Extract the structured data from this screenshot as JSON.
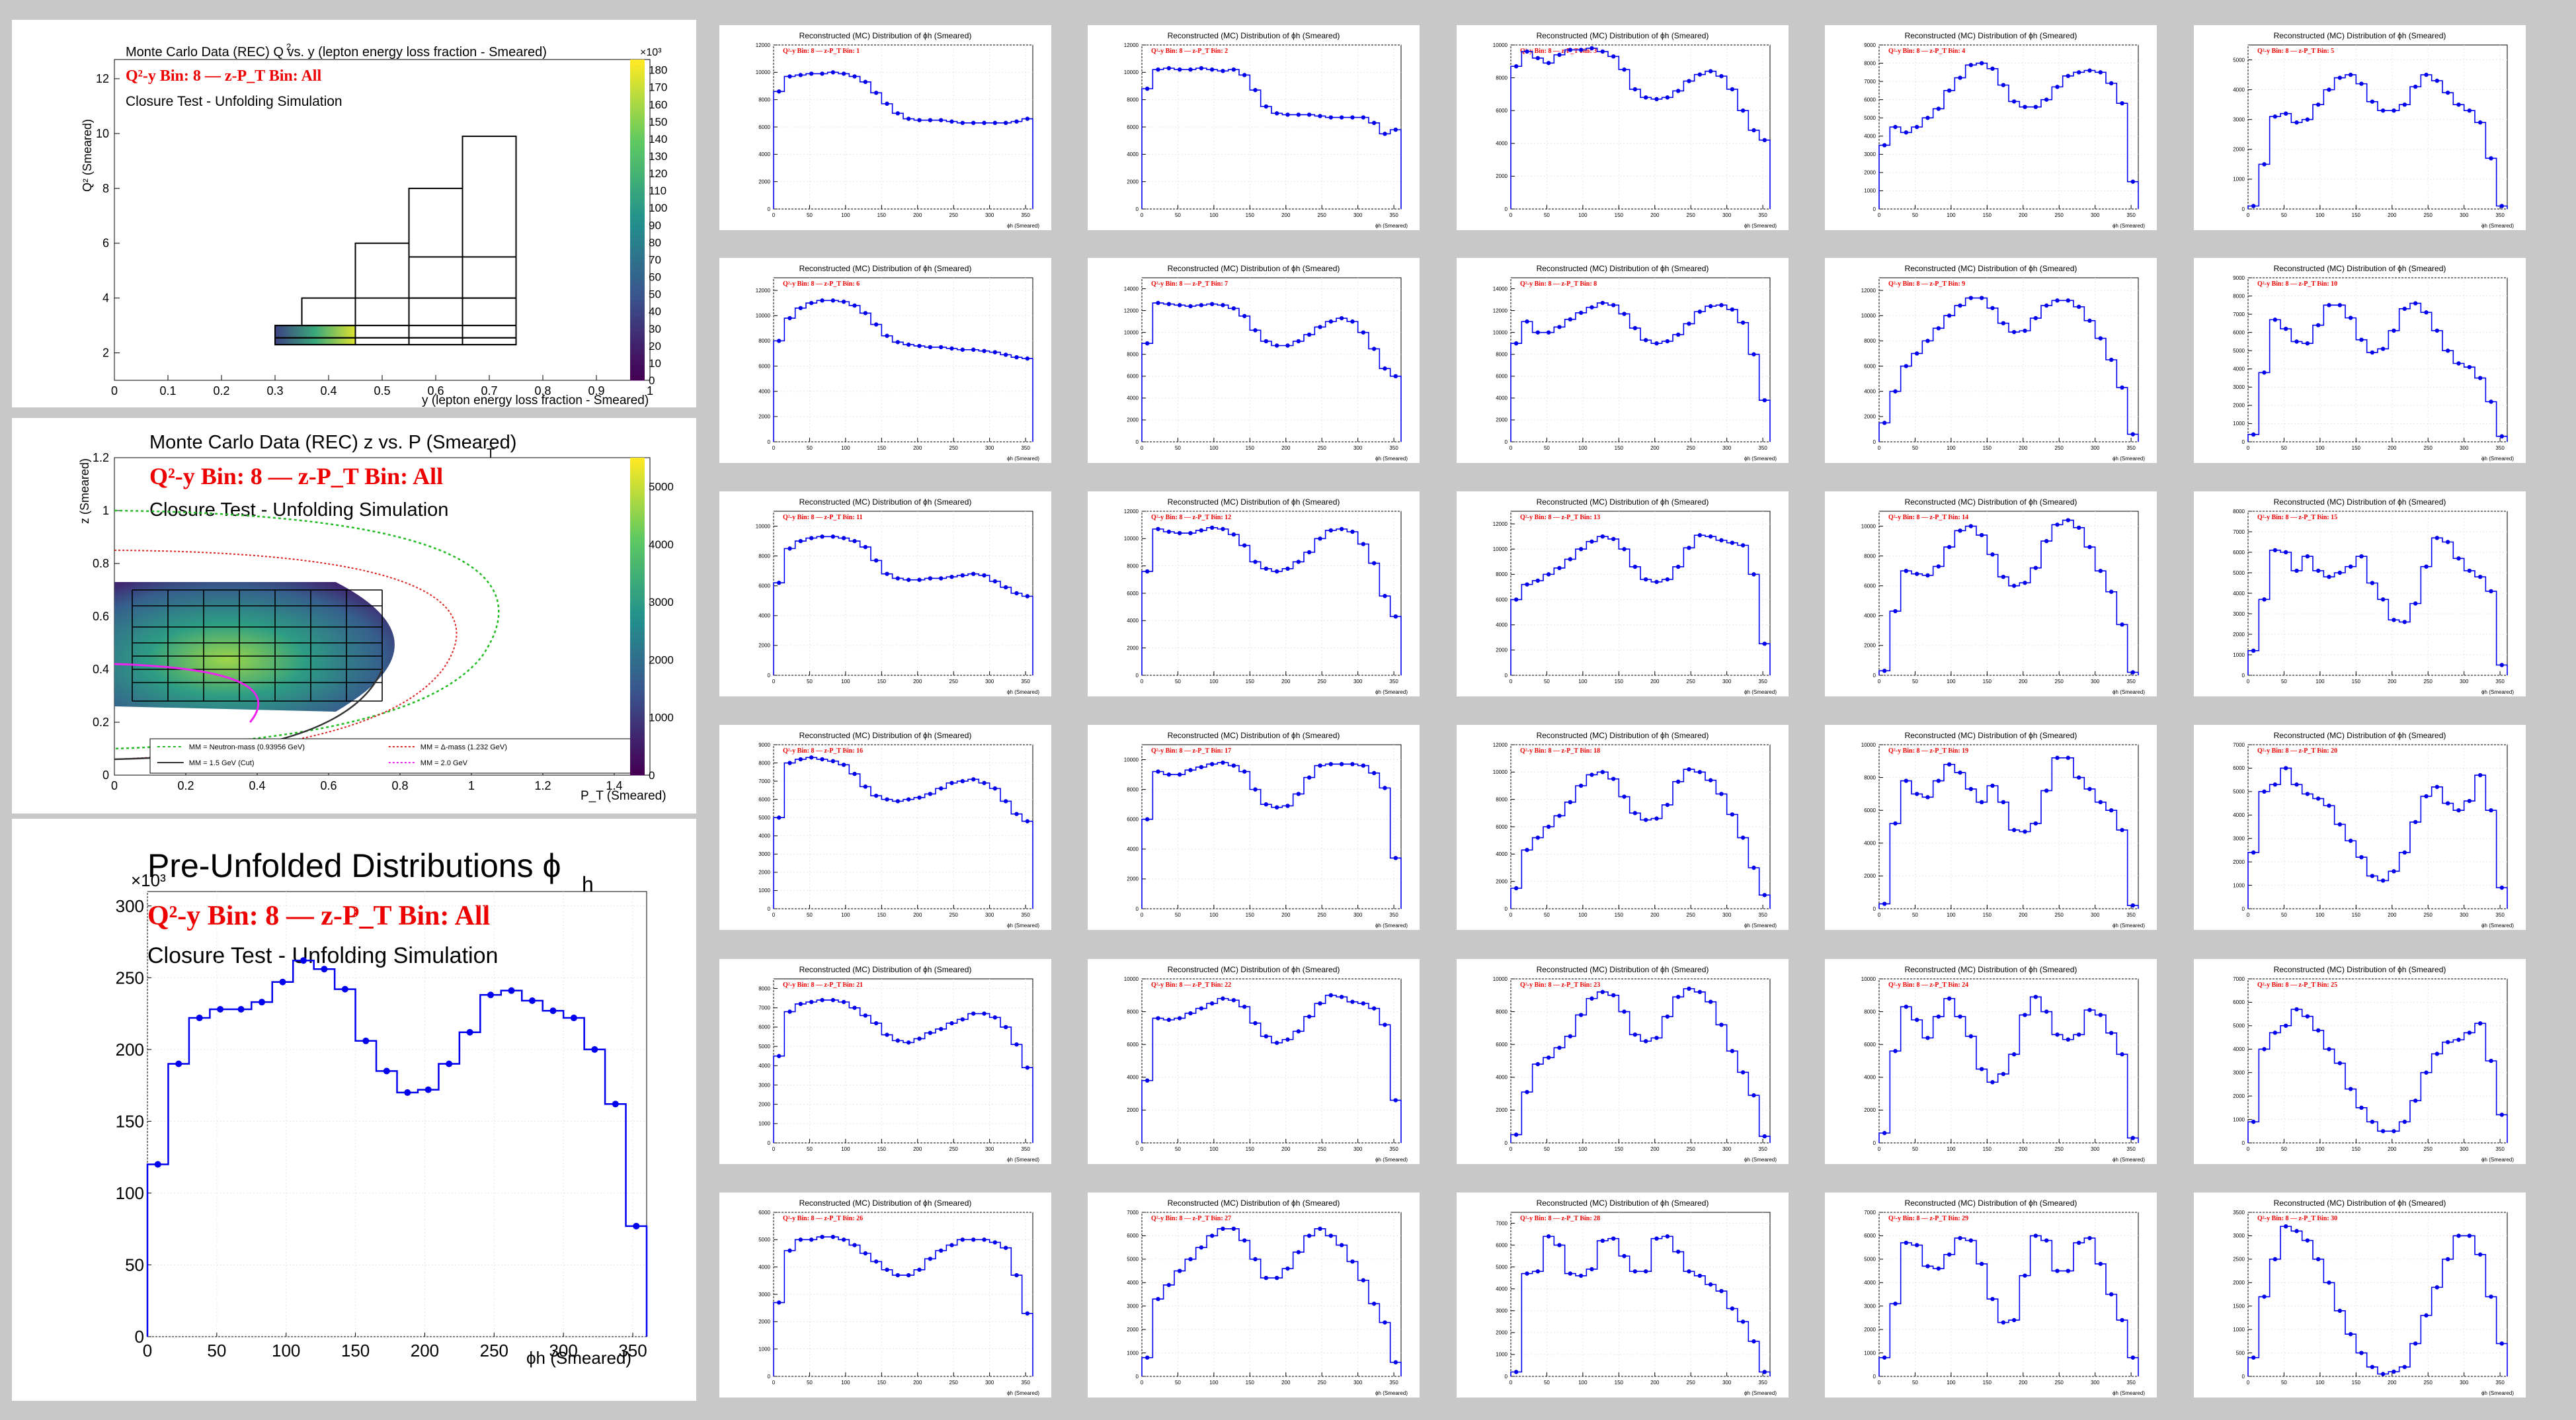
{
  "left_top": {
    "title": "Monte Carlo Data (REC) Q  vs. y (lepton energy loss fraction - Smeared)",
    "title_sup": "2",
    "bin_label": "Q²-y Bin: 8  —  z-P_T Bin: All",
    "subtitle": "Closure Test - Unfolding Simulation",
    "xlabel": "y (lepton energy loss fraction - Smeared)",
    "ylabel": "Q² (Smeared)",
    "colorbar_scale": "×10³",
    "colorbar_ticks": [
      "0",
      "10",
      "20",
      "30",
      "40",
      "50",
      "60",
      "70",
      "80",
      "90",
      "100",
      "110",
      "120",
      "130",
      "140",
      "150",
      "160",
      "170",
      "180"
    ],
    "x_ticks": [
      "0",
      "0.1",
      "0.2",
      "0.3",
      "0.4",
      "0.5",
      "0.6",
      "0.7",
      "0.8",
      "0.9",
      "1"
    ],
    "y_ticks": [
      "2",
      "4",
      "6",
      "8",
      "10",
      "12"
    ]
  },
  "left_mid": {
    "title": "Monte Carlo Data (REC) z vs. P  (Smeared)",
    "title_sub": "T",
    "bin_label": "Q²-y Bin: 8  —  z-P_T Bin: All",
    "subtitle": "Closure Test - Unfolding Simulation",
    "xlabel": "P_T (Smeared)",
    "ylabel": "z (Smeared)",
    "colorbar_ticks": [
      "0",
      "1000",
      "2000",
      "3000",
      "4000",
      "5000"
    ],
    "x_ticks": [
      "0",
      "0.2",
      "0.4",
      "0.6",
      "0.8",
      "1",
      "1.2",
      "1.4"
    ],
    "y_ticks": [
      "0",
      "0.2",
      "0.4",
      "0.6",
      "0.8",
      "1",
      "1.2"
    ],
    "legend": [
      "MM = Neutron-mass (0.93956 GeV)",
      "MM = Δ-mass (1.232 GeV)",
      "MM = 1.5 GeV (Cut)",
      "MM = 2.0 GeV"
    ]
  },
  "left_bottom": {
    "title": "Pre-Unfolded Distributions ϕ",
    "title_sub": "h",
    "bin_label": "Q²-y Bin: 8  —  z-P_T Bin: All",
    "subtitle": "Closure Test - Unfolding Simulation",
    "xlabel": "ϕh (Smeared)",
    "y_scale": "×10³",
    "x_ticks": [
      "0",
      "50",
      "100",
      "150",
      "200",
      "250",
      "300",
      "350"
    ],
    "y_ticks": [
      "0",
      "50",
      "100",
      "150",
      "200",
      "250",
      "300"
    ]
  },
  "small_panels": {
    "title": "Reconstructed (MC) Distribution of ϕh (Smeared)",
    "bin_prefix": "Q²-y Bin: 8  —  z-P_T Bin:",
    "xlabel": "ϕh (Smeared)",
    "x_ticks": [
      "0",
      "50",
      "100",
      "150",
      "200",
      "250",
      "300",
      "350"
    ]
  },
  "colors": {
    "hist": "#0000ee",
    "bin_label": "#ee0000",
    "background": "#c8c8c8"
  },
  "chart_data": [
    {
      "type": "bar",
      "name": "Pre-Unfolded Distributions ϕh",
      "x_unit": "degrees",
      "xlim": [
        0,
        360
      ],
      "ylim": [
        0,
        310
      ],
      "bin_width": 15,
      "values": [
        120,
        190,
        222,
        228,
        228,
        233,
        247,
        262,
        256,
        242,
        206,
        185,
        170,
        172,
        190,
        212,
        238,
        241,
        234,
        227,
        222,
        200,
        162,
        77
      ]
    },
    {
      "type": "bar",
      "small_multiples": true,
      "xlim": [
        0,
        360
      ],
      "bin_width": 15,
      "panels": [
        {
          "bin": "1",
          "ymax": 12000,
          "values": [
            8600,
            9700,
            9800,
            9900,
            9900,
            10000,
            9900,
            9700,
            9300,
            8500,
            7700,
            7000,
            6600,
            6500,
            6500,
            6500,
            6400,
            6300,
            6300,
            6300,
            6300,
            6300,
            6400,
            6600
          ]
        },
        {
          "bin": "2",
          "ymax": 12000,
          "values": [
            8800,
            10200,
            10300,
            10200,
            10200,
            10300,
            10200,
            10100,
            10200,
            9800,
            8700,
            7500,
            7000,
            6900,
            6900,
            6900,
            6800,
            6700,
            6700,
            6700,
            6700,
            6300,
            5500,
            5800
          ]
        },
        {
          "bin": "3",
          "ymax": 10000,
          "values": [
            8700,
            9600,
            9200,
            8900,
            9400,
            9700,
            9700,
            9800,
            9600,
            9300,
            8500,
            7300,
            6800,
            6700,
            6800,
            7200,
            7800,
            8200,
            8400,
            8100,
            7300,
            6000,
            4800,
            4200
          ]
        },
        {
          "bin": "4",
          "ymax": 9000,
          "values": [
            3500,
            4500,
            4200,
            4500,
            5000,
            5500,
            6500,
            7200,
            7900,
            8000,
            7700,
            6800,
            5900,
            5600,
            5600,
            6000,
            6700,
            7300,
            7500,
            7600,
            7500,
            6900,
            5800,
            1500
          ]
        },
        {
          "bin": "5",
          "ymax": 5500,
          "values": [
            100,
            1500,
            3100,
            3200,
            2900,
            3000,
            3500,
            4000,
            4400,
            4500,
            4200,
            3600,
            3300,
            3300,
            3500,
            4100,
            4500,
            4300,
            3900,
            3500,
            3300,
            2900,
            1700,
            100
          ]
        },
        {
          "bin": "6",
          "ymax": 13000,
          "values": [
            8000,
            9800,
            10600,
            11000,
            11200,
            11200,
            11100,
            10800,
            10200,
            9300,
            8400,
            7900,
            7700,
            7600,
            7500,
            7500,
            7400,
            7300,
            7300,
            7200,
            7100,
            6900,
            6700,
            6600
          ]
        },
        {
          "bin": "7",
          "ymax": 15000,
          "values": [
            9000,
            12700,
            12600,
            12500,
            12400,
            12500,
            12600,
            12500,
            12200,
            11500,
            10200,
            9200,
            8800,
            8800,
            9200,
            9800,
            10500,
            11000,
            11300,
            11000,
            10000,
            8500,
            6700,
            6000
          ]
        },
        {
          "bin": "8",
          "ymax": 15000,
          "values": [
            9000,
            11000,
            10000,
            10000,
            10500,
            11200,
            11800,
            12300,
            12700,
            12500,
            11700,
            10400,
            9300,
            9000,
            9200,
            9800,
            10800,
            11900,
            12400,
            12500,
            12100,
            10900,
            8000,
            3800
          ]
        },
        {
          "bin": "9",
          "ymax": 13000,
          "values": [
            1500,
            4000,
            6000,
            7000,
            8000,
            9000,
            10000,
            10800,
            11400,
            11400,
            10600,
            9400,
            8700,
            8800,
            9800,
            10800,
            11200,
            11200,
            10700,
            9600,
            8200,
            6500,
            4300,
            600
          ]
        },
        {
          "bin": "10",
          "ymax": 9000,
          "values": [
            400,
            3800,
            6700,
            6200,
            5500,
            5400,
            6400,
            7500,
            7500,
            6800,
            5600,
            4900,
            5100,
            6100,
            7300,
            7600,
            7100,
            6100,
            5000,
            4300,
            4100,
            3500,
            2200,
            300
          ]
        },
        {
          "bin": "11",
          "ymax": 11000,
          "values": [
            6200,
            8500,
            9000,
            9200,
            9300,
            9300,
            9200,
            9000,
            8600,
            7700,
            6800,
            6500,
            6400,
            6400,
            6500,
            6500,
            6600,
            6700,
            6800,
            6700,
            6300,
            5900,
            5500,
            5300
          ]
        },
        {
          "bin": "12",
          "ymax": 12000,
          "values": [
            7600,
            10700,
            10500,
            10400,
            10400,
            10600,
            10800,
            10700,
            10300,
            9500,
            8300,
            7800,
            7600,
            7800,
            8300,
            9000,
            10000,
            10600,
            10700,
            10500,
            9600,
            8200,
            5800,
            4300
          ]
        },
        {
          "bin": "13",
          "ymax": 13000,
          "values": [
            6000,
            7200,
            7500,
            8000,
            8500,
            9200,
            10000,
            10600,
            11000,
            10800,
            10000,
            8600,
            7600,
            7400,
            7600,
            8600,
            10100,
            11100,
            11000,
            10700,
            10500,
            10300,
            8000,
            2500
          ]
        },
        {
          "bin": "14",
          "ymax": 11000,
          "values": [
            300,
            4300,
            7000,
            6800,
            6700,
            7300,
            8600,
            9700,
            10000,
            9400,
            8100,
            6600,
            6000,
            6200,
            7200,
            9000,
            10100,
            10400,
            9900,
            8600,
            7000,
            5600,
            3400,
            200
          ]
        },
        {
          "bin": "15",
          "ymax": 8000,
          "values": [
            1200,
            3700,
            6100,
            6000,
            5100,
            5800,
            5100,
            4800,
            5000,
            5300,
            5800,
            4500,
            3700,
            2700,
            2600,
            3500,
            5300,
            6700,
            6500,
            5700,
            5100,
            4800,
            4100,
            500
          ]
        },
        {
          "bin": "16",
          "ymax": 9000,
          "values": [
            5000,
            8000,
            8200,
            8300,
            8200,
            8100,
            7900,
            7400,
            6700,
            6200,
            6000,
            5900,
            6000,
            6100,
            6300,
            6600,
            6900,
            7000,
            7100,
            6900,
            6600,
            5900,
            5200,
            4800
          ]
        },
        {
          "bin": "17",
          "ymax": 11000,
          "values": [
            6000,
            9200,
            9000,
            9000,
            9300,
            9500,
            9700,
            9800,
            9600,
            9200,
            8000,
            7000,
            6800,
            6900,
            7700,
            8800,
            9600,
            9700,
            9700,
            9700,
            9600,
            9100,
            8100,
            3400
          ]
        },
        {
          "bin": "18",
          "ymax": 12000,
          "values": [
            1500,
            4300,
            5200,
            6000,
            6800,
            7800,
            9000,
            9800,
            10000,
            9500,
            8200,
            7000,
            6500,
            6600,
            7600,
            9300,
            10200,
            10000,
            9400,
            8400,
            6900,
            5200,
            3000,
            1000
          ]
        },
        {
          "bin": "19",
          "ymax": 10000,
          "values": [
            300,
            5200,
            7800,
            7000,
            6800,
            7800,
            8800,
            8300,
            7300,
            6500,
            7500,
            6500,
            4800,
            4700,
            5200,
            7200,
            9200,
            9200,
            8000,
            7300,
            6500,
            6000,
            4800,
            200
          ]
        },
        {
          "bin": "20",
          "ymax": 7000,
          "values": [
            2400,
            5000,
            5300,
            6000,
            5300,
            4900,
            4700,
            4400,
            3600,
            2900,
            2200,
            1400,
            1200,
            1600,
            2400,
            3700,
            4800,
            5200,
            4500,
            4200,
            4600,
            5700,
            4200,
            900
          ]
        },
        {
          "bin": "21",
          "ymax": 8500,
          "values": [
            4500,
            6800,
            7200,
            7300,
            7400,
            7400,
            7300,
            7000,
            6600,
            6200,
            5600,
            5300,
            5200,
            5400,
            5700,
            5900,
            6200,
            6400,
            6700,
            6700,
            6500,
            6000,
            5100,
            3900
          ]
        },
        {
          "bin": "22",
          "ymax": 10000,
          "values": [
            3800,
            7600,
            7500,
            7600,
            7900,
            8200,
            8500,
            8800,
            8700,
            8300,
            7300,
            6500,
            6100,
            6300,
            6800,
            7700,
            8500,
            9000,
            8900,
            8600,
            8500,
            8200,
            7200,
            2600
          ]
        },
        {
          "bin": "23",
          "ymax": 10000,
          "values": [
            500,
            3100,
            4800,
            5200,
            5800,
            6500,
            7800,
            8800,
            9200,
            9000,
            8000,
            6600,
            6200,
            6400,
            7700,
            8900,
            9400,
            9200,
            8600,
            7200,
            5600,
            4300,
            2900,
            400
          ]
        },
        {
          "bin": "24",
          "ymax": 10000,
          "values": [
            600,
            5600,
            8300,
            7500,
            6400,
            7700,
            8800,
            7700,
            6500,
            4500,
            3700,
            4200,
            5400,
            7800,
            8900,
            8000,
            6600,
            6300,
            6600,
            8100,
            7800,
            6700,
            5400,
            300
          ]
        },
        {
          "bin": "25",
          "ymax": 7000,
          "values": [
            900,
            4000,
            4700,
            5000,
            5700,
            5400,
            4800,
            4000,
            3400,
            2300,
            1500,
            900,
            500,
            500,
            900,
            1800,
            3000,
            3800,
            4300,
            4400,
            4700,
            5100,
            3500,
            1200
          ]
        },
        {
          "bin": "26",
          "ymax": 6000,
          "values": [
            2700,
            4600,
            5000,
            5000,
            5100,
            5100,
            5000,
            4800,
            4500,
            4200,
            3900,
            3700,
            3700,
            3900,
            4300,
            4600,
            4800,
            5000,
            5000,
            5000,
            4900,
            4700,
            3700,
            2300
          ]
        },
        {
          "bin": "27",
          "ymax": 7000,
          "values": [
            800,
            3300,
            3900,
            4500,
            5000,
            5500,
            6000,
            6300,
            6300,
            5800,
            5000,
            4200,
            4200,
            4600,
            5300,
            6000,
            6300,
            6000,
            5600,
            4900,
            4100,
            3100,
            2300,
            600
          ]
        },
        {
          "bin": "28",
          "ymax": 7500,
          "values": [
            200,
            4700,
            4800,
            6400,
            6000,
            4700,
            4600,
            4900,
            6200,
            6300,
            5500,
            4800,
            4800,
            6300,
            6400,
            5700,
            4800,
            4600,
            4200,
            3900,
            3100,
            2500,
            1600,
            200
          ]
        },
        {
          "bin": "29",
          "ymax": 7000,
          "values": [
            800,
            3100,
            5700,
            5600,
            4700,
            4600,
            5200,
            5900,
            5800,
            4800,
            3300,
            2300,
            2400,
            4300,
            6000,
            5800,
            4500,
            4500,
            5700,
            5900,
            4800,
            3500,
            2400,
            800
          ]
        },
        {
          "bin": "30",
          "ymax": 3500,
          "values": [
            400,
            1700,
            2500,
            3200,
            3100,
            2900,
            2500,
            2000,
            1400,
            900,
            500,
            200,
            50,
            100,
            200,
            700,
            1300,
            1900,
            2500,
            3000,
            3000,
            2600,
            1700,
            700
          ]
        }
      ]
    }
  ]
}
